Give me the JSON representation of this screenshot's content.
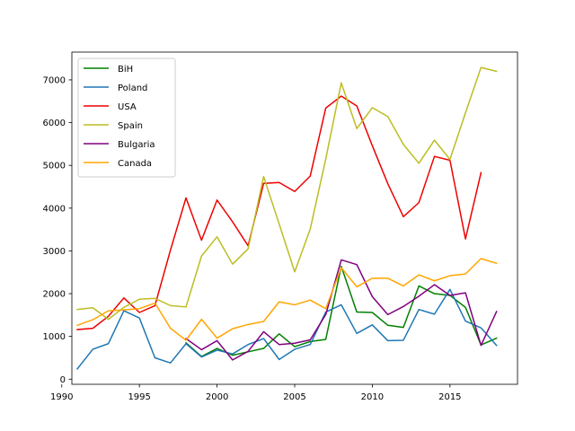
{
  "chart_data": {
    "type": "line",
    "title": "",
    "xlabel": "",
    "ylabel": "",
    "xlim": [
      1990.65,
      2019.35
    ],
    "ylim": [
      -120,
      7650
    ],
    "xticks": [
      1990,
      1995,
      2000,
      2005,
      2010,
      2015
    ],
    "yticks": [
      0,
      1000,
      2000,
      3000,
      4000,
      5000,
      6000,
      7000
    ],
    "grid": false,
    "legend_position": "top-left",
    "x": [
      1991,
      1992,
      1993,
      1994,
      1995,
      1996,
      1997,
      1998,
      1999,
      2000,
      2001,
      2002,
      2003,
      2004,
      2005,
      2006,
      2007,
      2008,
      2009,
      2010,
      2011,
      2012,
      2013,
      2014,
      2015,
      2016,
      2017,
      2018
    ],
    "series": [
      {
        "name": "BiH",
        "color": "#008000",
        "values": [
          null,
          null,
          null,
          null,
          null,
          null,
          null,
          850,
          530,
          720,
          560,
          640,
          720,
          1060,
          760,
          880,
          930,
          2640,
          1570,
          1560,
          1260,
          1210,
          2180,
          2000,
          1960,
          1680,
          800,
          960
        ]
      },
      {
        "name": "Poland",
        "color": "#1f77b4",
        "values": [
          240,
          700,
          830,
          1600,
          1430,
          500,
          380,
          830,
          520,
          680,
          590,
          810,
          950,
          460,
          700,
          810,
          1570,
          1740,
          1070,
          1270,
          900,
          910,
          1630,
          1520,
          2100,
          1360,
          1200,
          790
        ]
      },
      {
        "name": "USA",
        "color": "#ee0000",
        "values": [
          1160,
          1190,
          1470,
          1900,
          1560,
          1720,
          3020,
          4240,
          3250,
          4190,
          3680,
          3120,
          4580,
          4600,
          4390,
          4750,
          6340,
          6620,
          6390,
          5460,
          4570,
          3800,
          4130,
          5210,
          5120,
          3280,
          4830,
          null
        ]
      },
      {
        "name": "Spain",
        "color": "#bcbd22",
        "values": [
          1630,
          1670,
          1400,
          1680,
          1870,
          1890,
          1720,
          1690,
          2880,
          3330,
          2690,
          3050,
          4740,
          3630,
          2510,
          3510,
          5150,
          6930,
          5860,
          6350,
          6140,
          5490,
          5050,
          5590,
          5140,
          6230,
          7290,
          7200
        ]
      },
      {
        "name": "Bulgaria",
        "color": "#800080",
        "values": [
          null,
          null,
          null,
          null,
          null,
          null,
          null,
          950,
          690,
          900,
          450,
          650,
          1110,
          810,
          840,
          920,
          1510,
          2790,
          2680,
          1930,
          1510,
          1700,
          1940,
          2210,
          1960,
          2020,
          790,
          1580
        ]
      },
      {
        "name": "Canada",
        "color": "#ffa500",
        "values": [
          1260,
          1390,
          1600,
          1620,
          1650,
          1780,
          1190,
          910,
          1400,
          960,
          1180,
          1280,
          1350,
          1810,
          1740,
          1850,
          1650,
          2610,
          2160,
          2360,
          2360,
          2180,
          2440,
          2300,
          2420,
          2460,
          2820,
          2710
        ]
      }
    ]
  }
}
